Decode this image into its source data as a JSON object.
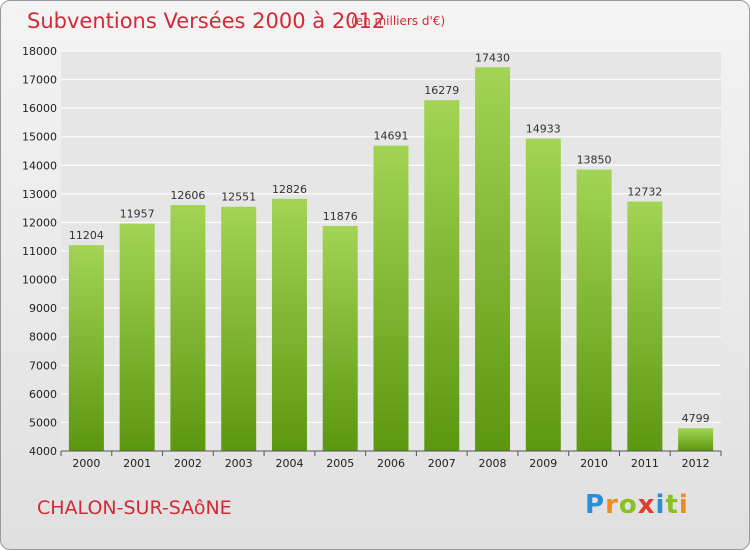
{
  "header": {
    "title": "Subventions Versées 2000 à 2012",
    "subtitle": "(en milliers d'€)"
  },
  "footer": {
    "city": "CHALON-SUR-SAôNE",
    "brand": "Proxiti"
  },
  "colors": {
    "title": "#d42a36",
    "bar_light": "#9fd152",
    "bar_dark": "#5f9a12",
    "grid": "#ffffff",
    "plot_bg": "#e6e6e6"
  },
  "chart_data": {
    "type": "bar",
    "title": "Subventions Versées 2000 à 2012",
    "subtitle": "(en milliers d'€)",
    "xlabel": "",
    "ylabel": "",
    "categories": [
      "2000",
      "2001",
      "2002",
      "2003",
      "2004",
      "2005",
      "2006",
      "2007",
      "2008",
      "2009",
      "2010",
      "2011",
      "2012"
    ],
    "values": [
      11204,
      11957,
      12606,
      12551,
      12826,
      11876,
      14691,
      16279,
      17430,
      14933,
      13850,
      12732,
      4799
    ],
    "ylim": [
      4000,
      18000
    ],
    "yticks": [
      4000,
      5000,
      6000,
      7000,
      8000,
      9000,
      10000,
      11000,
      12000,
      13000,
      14000,
      15000,
      16000,
      17000,
      18000
    ],
    "grid": true,
    "legend": "none"
  }
}
